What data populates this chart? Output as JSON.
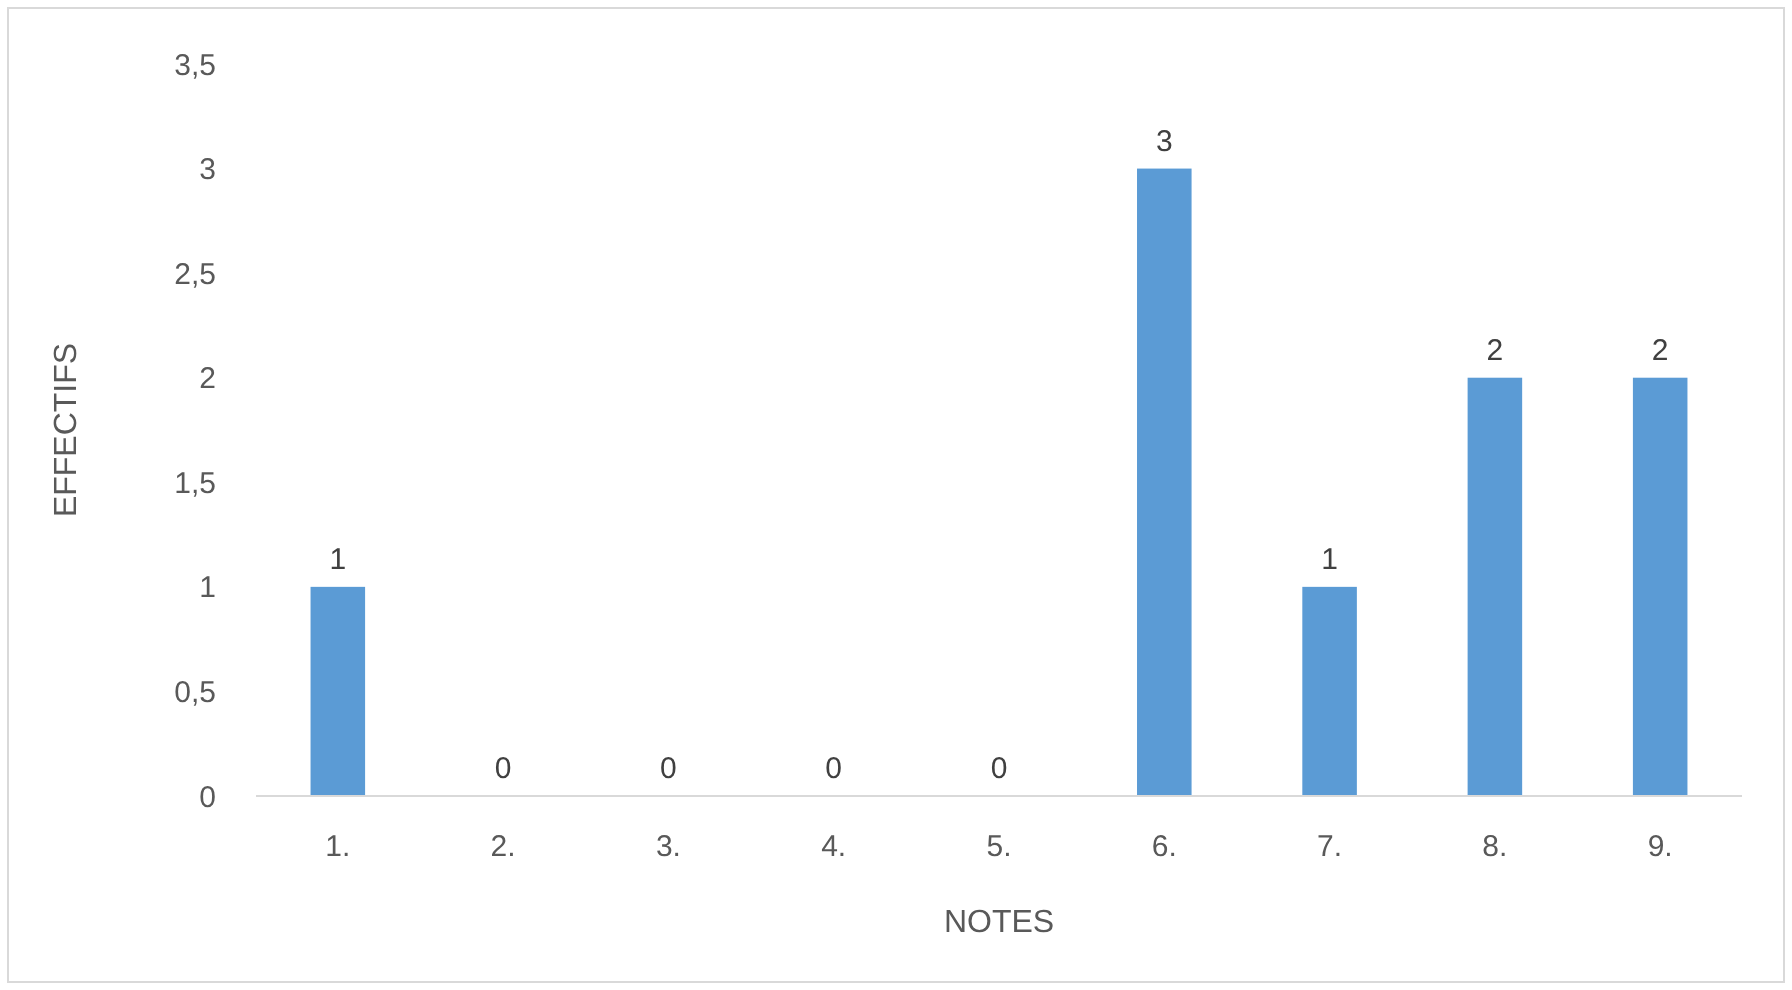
{
  "chart_data": {
    "type": "bar",
    "xlabel": "NOTES",
    "ylabel": "EFFECTIFS",
    "categories": [
      "1.",
      "2.",
      "3.",
      "4.",
      "5.",
      "6.",
      "7.",
      "8.",
      "9."
    ],
    "values": [
      1,
      0,
      0,
      0,
      0,
      3,
      1,
      2,
      2
    ],
    "color": "#5b9bd5",
    "ylim": [
      0,
      3.5
    ],
    "yticks": [
      0,
      {
        "value": 0.5,
        "label": "0,5"
      },
      1,
      {
        "value": 1.5,
        "label": "1,5"
      },
      2,
      {
        "value": 2.5,
        "label": "2,5"
      },
      3,
      {
        "value": 3.5,
        "label": "3,5"
      }
    ],
    "data_labels": true,
    "grid": false
  }
}
